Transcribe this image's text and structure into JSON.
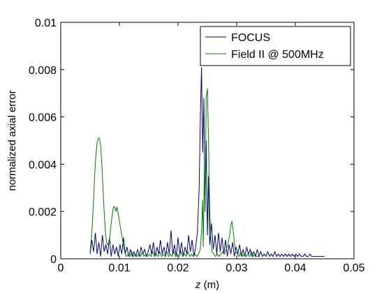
{
  "chart_data": {
    "type": "line",
    "xlabel": "z (m)",
    "ylabel": "normalized axial error",
    "xlim": [
      0,
      0.05
    ],
    "ylim": [
      0,
      0.01
    ],
    "xticks": [
      0,
      0.01,
      0.02,
      0.03,
      0.04,
      0.05
    ],
    "xtick_labels": [
      "0",
      "0.01",
      "0.02",
      "0.03",
      "0.04",
      "0.05"
    ],
    "yticks": [
      0,
      0.002,
      0.004,
      0.006,
      0.008,
      0.01
    ],
    "ytick_labels": [
      "0",
      "0.002",
      "0.004",
      "0.006",
      "0.008",
      "0.01"
    ],
    "grid": false,
    "legend_position": "top-right",
    "series": [
      {
        "name": "FOCUS",
        "color": "#00007f",
        "points": [
          [
            0.005,
            0.0002
          ],
          [
            0.0053,
            0.0008
          ],
          [
            0.0056,
            0.0003
          ],
          [
            0.0059,
            0.0011
          ],
          [
            0.0062,
            0.0002
          ],
          [
            0.0065,
            0.0007
          ],
          [
            0.0068,
            0.0001
          ],
          [
            0.0071,
            0.001
          ],
          [
            0.0074,
            0.0003
          ],
          [
            0.0077,
            0.0006
          ],
          [
            0.008,
            0.0002
          ],
          [
            0.0083,
            0.0009
          ],
          [
            0.0086,
            0.0001
          ],
          [
            0.0089,
            0.0006
          ],
          [
            0.0092,
            0.0002
          ],
          [
            0.0095,
            0.0005
          ],
          [
            0.0098,
            0.0001
          ],
          [
            0.0101,
            0.0006
          ],
          [
            0.0104,
            0.0002
          ],
          [
            0.0107,
            0.0009
          ],
          [
            0.011,
            0.0002
          ],
          [
            0.0113,
            0.0005
          ],
          [
            0.0116,
            0.0001
          ],
          [
            0.0119,
            0.0004
          ],
          [
            0.0122,
            0.0001
          ],
          [
            0.0125,
            0.0003
          ],
          [
            0.0128,
            0.0001
          ],
          [
            0.0131,
            0.0004
          ],
          [
            0.0134,
            0.0001
          ],
          [
            0.0137,
            0.0005
          ],
          [
            0.014,
            0.0002
          ],
          [
            0.0143,
            0.0004
          ],
          [
            0.0146,
            0.0001
          ],
          [
            0.0149,
            0.0003
          ],
          [
            0.0152,
            0.0006
          ],
          [
            0.0155,
            0.0002
          ],
          [
            0.0158,
            0.0007
          ],
          [
            0.0161,
            0.0001
          ],
          [
            0.0164,
            0.0005
          ],
          [
            0.0167,
            0.0002
          ],
          [
            0.017,
            0.0008
          ],
          [
            0.0173,
            0.0002
          ],
          [
            0.0176,
            0.0005
          ],
          [
            0.0179,
            0.0001
          ],
          [
            0.0182,
            0.0007
          ],
          [
            0.0185,
            0.0002
          ],
          [
            0.0188,
            0.0012
          ],
          [
            0.0191,
            0.0002
          ],
          [
            0.0194,
            0.0006
          ],
          [
            0.0197,
            0.0001
          ],
          [
            0.02,
            0.0009
          ],
          [
            0.0203,
            0.0002
          ],
          [
            0.0206,
            0.0007
          ],
          [
            0.0209,
            0.0001
          ],
          [
            0.0212,
            0.0005
          ],
          [
            0.0215,
            0.0002
          ],
          [
            0.0218,
            0.001
          ],
          [
            0.0221,
            0.0003
          ],
          [
            0.0224,
            0.0008
          ],
          [
            0.0227,
            0.0001
          ],
          [
            0.023,
            0.0005
          ],
          [
            0.0233,
            0.0011
          ],
          [
            0.0236,
            0.003
          ],
          [
            0.0238,
            0.006
          ],
          [
            0.024,
            0.0081
          ],
          [
            0.0242,
            0.0045
          ],
          [
            0.0244,
            0.0068
          ],
          [
            0.0246,
            0.002
          ],
          [
            0.0248,
            0.005
          ],
          [
            0.025,
            0.001
          ],
          [
            0.0252,
            0.0035
          ],
          [
            0.0254,
            0.0006
          ],
          [
            0.0257,
            0.0015
          ],
          [
            0.026,
            0.0004
          ],
          [
            0.0263,
            0.001
          ],
          [
            0.0266,
            0.0002
          ],
          [
            0.0269,
            0.0011
          ],
          [
            0.0272,
            0.0003
          ],
          [
            0.0275,
            0.0009
          ],
          [
            0.0278,
            0.0002
          ],
          [
            0.0281,
            0.0008
          ],
          [
            0.0284,
            0.0001
          ],
          [
            0.0287,
            0.0006
          ],
          [
            0.029,
            0.0002
          ],
          [
            0.0293,
            0.0007
          ],
          [
            0.0296,
            0.0001
          ],
          [
            0.0299,
            0.0005
          ],
          [
            0.0302,
            0.0002
          ],
          [
            0.0305,
            0.0006
          ],
          [
            0.0308,
            0.0001
          ],
          [
            0.0311,
            0.0004
          ],
          [
            0.0314,
            0.0001
          ],
          [
            0.0317,
            0.0005
          ],
          [
            0.032,
            0.0002
          ],
          [
            0.0323,
            0.0004
          ],
          [
            0.0326,
            0.0001
          ],
          [
            0.0329,
            0.0003
          ],
          [
            0.0332,
            0.0001
          ],
          [
            0.0335,
            0.0004
          ],
          [
            0.0338,
            0.0001
          ],
          [
            0.0341,
            0.0003
          ],
          [
            0.0344,
            0.0001
          ],
          [
            0.0347,
            0.0002
          ],
          [
            0.035,
            0.0001
          ],
          [
            0.0353,
            0.0003
          ],
          [
            0.0356,
            0.0001
          ],
          [
            0.0359,
            0.0002
          ],
          [
            0.0362,
            0.0001
          ],
          [
            0.0365,
            0.0003
          ],
          [
            0.0368,
            0.0001
          ],
          [
            0.0371,
            0.0002
          ],
          [
            0.0374,
            0.0001
          ],
          [
            0.0377,
            0.0002
          ],
          [
            0.038,
            0.0001
          ],
          [
            0.0383,
            0.0002
          ],
          [
            0.0386,
            0.0001
          ],
          [
            0.0389,
            0.0002
          ],
          [
            0.0392,
            0.0001
          ],
          [
            0.0395,
            0.0002
          ],
          [
            0.0398,
            0.0001
          ],
          [
            0.0401,
            0.0002
          ],
          [
            0.0404,
            0.0001
          ],
          [
            0.0407,
            0.0002
          ],
          [
            0.041,
            0.0001
          ],
          [
            0.0413,
            0.0001
          ],
          [
            0.0416,
            0.0002
          ],
          [
            0.0419,
            0.0001
          ],
          [
            0.0422,
            0.0001
          ],
          [
            0.0425,
            0.0002
          ],
          [
            0.0428,
            0.0001
          ],
          [
            0.0431,
            0.0001
          ],
          [
            0.0434,
            0.0001
          ],
          [
            0.0437,
            0.0001
          ],
          [
            0.044,
            0.0001
          ],
          [
            0.0443,
            0.0001
          ],
          [
            0.045,
            0.0001
          ]
        ]
      },
      {
        "name": "Field II @ 500MHz",
        "color": "#007f00",
        "points": [
          [
            0.005,
            0.0003
          ],
          [
            0.0052,
            0.0008
          ],
          [
            0.0054,
            0.0015
          ],
          [
            0.0056,
            0.0025
          ],
          [
            0.0058,
            0.0036
          ],
          [
            0.006,
            0.0044
          ],
          [
            0.0062,
            0.0049
          ],
          [
            0.0064,
            0.0051
          ],
          [
            0.0066,
            0.0051
          ],
          [
            0.0068,
            0.0048
          ],
          [
            0.007,
            0.004
          ],
          [
            0.0072,
            0.003
          ],
          [
            0.0074,
            0.002
          ],
          [
            0.0076,
            0.0012
          ],
          [
            0.0078,
            0.0007
          ],
          [
            0.008,
            0.0006
          ],
          [
            0.0082,
            0.0007
          ],
          [
            0.0084,
            0.001
          ],
          [
            0.0086,
            0.0015
          ],
          [
            0.0088,
            0.0019
          ],
          [
            0.009,
            0.0022
          ],
          [
            0.0092,
            0.0022
          ],
          [
            0.0094,
            0.002
          ],
          [
            0.0096,
            0.0022
          ],
          [
            0.0098,
            0.0019
          ],
          [
            0.01,
            0.0016
          ],
          [
            0.0102,
            0.0013
          ],
          [
            0.0104,
            0.001
          ],
          [
            0.0106,
            0.0007
          ],
          [
            0.0108,
            0.0004
          ],
          [
            0.011,
            0.0002
          ],
          [
            0.0112,
            0.0001
          ],
          [
            0.0115,
            0.0002
          ],
          [
            0.0118,
            0.0001
          ],
          [
            0.0121,
            0.0003
          ],
          [
            0.0124,
            0.0001
          ],
          [
            0.0127,
            0.0002
          ],
          [
            0.013,
            0.0001
          ],
          [
            0.0133,
            0.0002
          ],
          [
            0.0136,
            0.0001
          ],
          [
            0.0139,
            0.0003
          ],
          [
            0.0142,
            0.0001
          ],
          [
            0.0145,
            0.0002
          ],
          [
            0.0148,
            0.0001
          ],
          [
            0.0151,
            0.0002
          ],
          [
            0.0154,
            0.0001
          ],
          [
            0.0157,
            0.0003
          ],
          [
            0.016,
            0.0001
          ],
          [
            0.0163,
            0.0002
          ],
          [
            0.0166,
            0.0001
          ],
          [
            0.0169,
            0.0003
          ],
          [
            0.0172,
            0.0001
          ],
          [
            0.0175,
            0.0002
          ],
          [
            0.0178,
            0.0001
          ],
          [
            0.0181,
            0.0003
          ],
          [
            0.0184,
            0.0001
          ],
          [
            0.0187,
            0.0002
          ],
          [
            0.019,
            0.0001
          ],
          [
            0.0193,
            0.0003
          ],
          [
            0.0196,
            0.0001
          ],
          [
            0.0199,
            0.0002
          ],
          [
            0.0202,
            0.0001
          ],
          [
            0.0205,
            0.0003
          ],
          [
            0.0208,
            0.0001
          ],
          [
            0.0211,
            0.0002
          ],
          [
            0.0214,
            0.0001
          ],
          [
            0.0217,
            0.0003
          ],
          [
            0.022,
            0.0001
          ],
          [
            0.0223,
            0.0002
          ],
          [
            0.0226,
            0.0001
          ],
          [
            0.0229,
            0.0002
          ],
          [
            0.0232,
            0.0001
          ],
          [
            0.0235,
            0.0002
          ],
          [
            0.0238,
            0.0004
          ],
          [
            0.024,
            0.0012
          ],
          [
            0.0242,
            0.0025
          ],
          [
            0.0243,
            0.0005
          ],
          [
            0.0245,
            0.004
          ],
          [
            0.0246,
            0.002
          ],
          [
            0.0248,
            0.0068
          ],
          [
            0.025,
            0.0072
          ],
          [
            0.0252,
            0.005
          ],
          [
            0.0254,
            0.002
          ],
          [
            0.0256,
            0.0008
          ],
          [
            0.0258,
            0.0003
          ],
          [
            0.0261,
            0.0002
          ],
          [
            0.0264,
            0.0001
          ],
          [
            0.0267,
            0.0002
          ],
          [
            0.027,
            0.0001
          ],
          [
            0.0273,
            0.0002
          ],
          [
            0.0276,
            0.0003
          ],
          [
            0.0279,
            0.0002
          ],
          [
            0.0282,
            0.0004
          ],
          [
            0.0285,
            0.0006
          ],
          [
            0.0288,
            0.001
          ],
          [
            0.029,
            0.0014
          ],
          [
            0.0292,
            0.0016
          ],
          [
            0.0294,
            0.0012
          ],
          [
            0.0296,
            0.0007
          ],
          [
            0.0298,
            0.0003
          ],
          [
            0.0301,
            0.0002
          ],
          [
            0.0304,
            0.0001
          ],
          [
            0.0307,
            0.0003
          ],
          [
            0.031,
            0.0001
          ],
          [
            0.0313,
            0.0002
          ],
          [
            0.0316,
            0.0001
          ],
          [
            0.0319,
            0.0002
          ],
          [
            0.0322,
            0.0001
          ],
          [
            0.0325,
            0.0003
          ],
          [
            0.0328,
            0.0001
          ],
          [
            0.0331,
            0.0002
          ],
          [
            0.0334,
            0.0001
          ],
          [
            0.0337,
            0.0001
          ]
        ]
      }
    ]
  }
}
